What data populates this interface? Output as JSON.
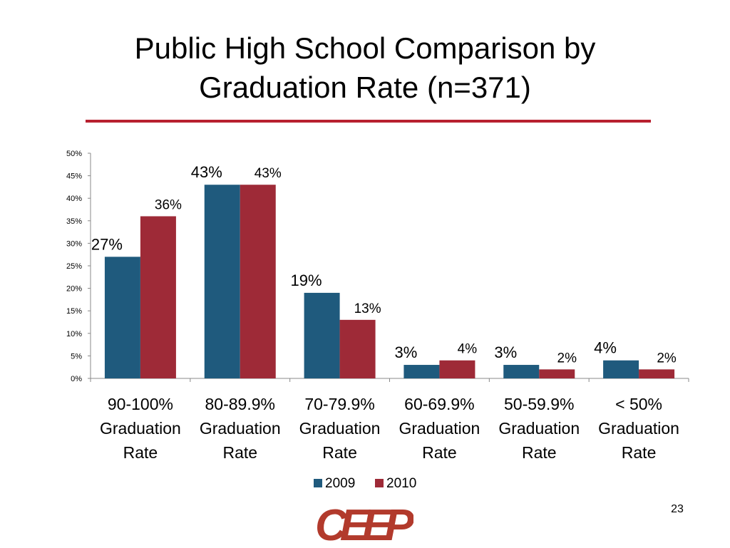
{
  "slide": {
    "title_line1": "Public High School Comparison by",
    "title_line2": "Graduation Rate (n=371)",
    "number": "23"
  },
  "colors": {
    "2009": "#1f5a7d",
    "2010": "#9e2a37",
    "rule": "#b8202f",
    "logo": "#b23a2c"
  },
  "chart_data": {
    "type": "bar",
    "categories": [
      [
        "90-100%",
        "Graduation",
        "Rate"
      ],
      [
        "80-89.9%",
        "Graduation",
        "Rate"
      ],
      [
        "70-79.9%",
        "Graduation",
        "Rate"
      ],
      [
        "60-69.9%",
        "Graduation",
        "Rate"
      ],
      [
        "50-59.9%",
        "Graduation",
        "Rate"
      ],
      [
        "< 50%",
        "Graduation",
        "Rate"
      ]
    ],
    "series": [
      {
        "name": "2009",
        "values": [
          27,
          43,
          19,
          3,
          3,
          4
        ],
        "labels": [
          "27%",
          "43%",
          "19%",
          "3%",
          "3%",
          "4%"
        ]
      },
      {
        "name": "2010",
        "values": [
          36,
          43,
          13,
          4,
          2,
          2
        ],
        "labels": [
          "36%",
          "43%",
          "13%",
          "4%",
          "2%",
          "2%"
        ]
      }
    ],
    "ylim": [
      0,
      50
    ],
    "yticks": [
      "0%",
      "5%",
      "10%",
      "15%",
      "20%",
      "25%",
      "30%",
      "35%",
      "40%",
      "45%",
      "50%"
    ],
    "legend": "bottom",
    "grid": false
  }
}
